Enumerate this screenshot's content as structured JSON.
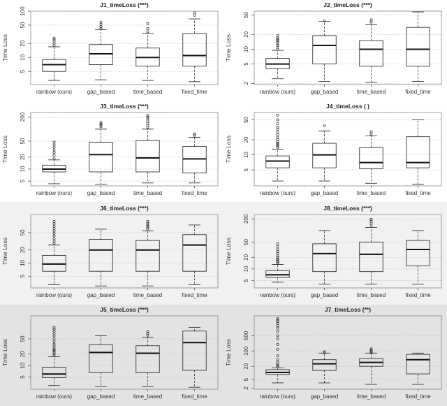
{
  "colors": {
    "band_top": "#ffffff",
    "band_middle": "#f1f1f1",
    "band_bottom": "#e3e3e3",
    "box_stroke": "#333333",
    "outlier": "#333333"
  },
  "chart_data": [
    {
      "type": "box",
      "title": "J1_timeLoss (***)",
      "ylabel": "Time Loss",
      "yscale": "log",
      "ylim": [
        2.6,
        100
      ],
      "yticks": [
        5,
        10,
        20,
        50,
        100
      ],
      "categories": [
        "rainbow (ours)",
        "gap_based",
        "time_based",
        "fixed_time"
      ],
      "boxes": [
        {
          "whisker_low": 3.2,
          "q1": 5.0,
          "median": 7.0,
          "q3": 9.0,
          "whisker_high": 17,
          "outliers": [
            18,
            20,
            22,
            24,
            26
          ]
        },
        {
          "whisker_low": 3.3,
          "q1": 7.0,
          "median": 12.0,
          "q3": 19.0,
          "whisker_high": 40,
          "outliers": [
            42,
            46,
            52,
            58
          ]
        },
        {
          "whisker_low": 3.2,
          "q1": 6.5,
          "median": 10.0,
          "q3": 16.0,
          "whisker_high": 33,
          "outliers": [
            36,
            42,
            54
          ]
        },
        {
          "whisker_low": 3.0,
          "q1": 6.5,
          "median": 11.0,
          "q3": 33.0,
          "whisker_high": 68,
          "outliers": [
            82,
            92
          ]
        }
      ]
    },
    {
      "type": "box",
      "title": "J2_timeLoss (***)",
      "ylabel": "Time Loss",
      "yscale": "log",
      "ylim": [
        1.9,
        60
      ],
      "yticks": [
        2,
        5,
        10,
        20,
        50
      ],
      "categories": [
        "rainbow (ours)",
        "gap_based",
        "time_based",
        "fixed_time"
      ],
      "boxes": [
        {
          "whisker_low": 2.5,
          "q1": 4.0,
          "median": 5.0,
          "q3": 6.5,
          "whisker_high": 9.5,
          "outliers": [
            10,
            11,
            12,
            13,
            14,
            15,
            16,
            17,
            19
          ]
        },
        {
          "whisker_low": 2.2,
          "q1": 5.0,
          "median": 12.0,
          "q3": 19.0,
          "whisker_high": 37,
          "outliers": [
            38
          ]
        },
        {
          "whisker_low": 2.1,
          "q1": 4.5,
          "median": 10.0,
          "q3": 15.0,
          "whisker_high": 32,
          "outliers": [
            36,
            40
          ]
        },
        {
          "whisker_low": 2.2,
          "q1": 4.5,
          "median": 10.0,
          "q3": 28.0,
          "whisker_high": 58,
          "outliers": []
        }
      ]
    },
    {
      "type": "box",
      "title": "J3_timeLoss (***)",
      "ylabel": "Time Loss",
      "yscale": "log",
      "ylim": [
        3.8,
        260
      ],
      "yticks": [
        5,
        10,
        20,
        50,
        200
      ],
      "categories": [
        "rainbow (ours)",
        "gap_based",
        "time_based",
        "fixed_time"
      ],
      "boxes": [
        {
          "whisker_low": 4.3,
          "q1": 8.5,
          "median": 10.0,
          "q3": 12.5,
          "whisker_high": 17,
          "outliers": [
            18,
            22,
            26,
            30,
            35,
            40,
            47
          ]
        },
        {
          "whisker_low": 4.2,
          "q1": 8.5,
          "median": 23.0,
          "q3": 47.0,
          "whisker_high": 100,
          "outliers": [
            115,
            125,
            135,
            145
          ]
        },
        {
          "whisker_low": 4.5,
          "q1": 8.5,
          "median": 19.0,
          "q3": 52.0,
          "whisker_high": 100,
          "outliers": [
            110,
            125,
            140,
            160,
            180,
            200,
            220
          ]
        },
        {
          "whisker_low": 4.5,
          "q1": 8.0,
          "median": 18.0,
          "q3": 37.0,
          "whisker_high": 62,
          "outliers": [
            70,
            76
          ]
        }
      ]
    },
    {
      "type": "box",
      "title": "J4_timeLoss ( )",
      "ylabel": "Time Loss",
      "yscale": "log",
      "ylim": [
        2.4,
        70
      ],
      "yticks": [
        5,
        10,
        20,
        50
      ],
      "categories": [
        "rainbow (ours)",
        "gap_based",
        "time_based",
        "fixed_time"
      ],
      "boxes": [
        {
          "whisker_low": 3.0,
          "q1": 5.5,
          "median": 7.5,
          "q3": 9.5,
          "whisker_high": 13,
          "outliers": [
            14,
            15,
            16,
            17,
            18,
            20,
            22,
            25,
            28,
            32,
            36,
            42,
            50,
            62
          ]
        },
        {
          "whisker_low": 3.0,
          "q1": 5.5,
          "median": 10.0,
          "q3": 17.0,
          "whisker_high": 30,
          "outliers": [
            38
          ]
        },
        {
          "whisker_low": 2.7,
          "q1": 5.3,
          "median": 7.0,
          "q3": 14.0,
          "whisker_high": 24,
          "outliers": [
            26,
            29
          ]
        },
        {
          "whisker_low": 2.6,
          "q1": 5.5,
          "median": 7.0,
          "q3": 23.0,
          "whisker_high": 50,
          "outliers": []
        }
      ]
    },
    {
      "type": "box",
      "title": "J6_timeLoss (***)",
      "ylabel": "Time Loss",
      "yscale": "log",
      "ylim": [
        2.7,
        130
      ],
      "yticks": [
        5,
        10,
        20,
        50
      ],
      "categories": [
        "rainbow (ours)",
        "gap_based",
        "time_based",
        "fixed_time"
      ],
      "boxes": [
        {
          "whisker_low": 3.2,
          "q1": 6.5,
          "median": 9.5,
          "q3": 15.0,
          "whisker_high": 26,
          "outliers": [
            28,
            32,
            36,
            42,
            48,
            55,
            62,
            70,
            80,
            90
          ]
        },
        {
          "whisker_low": 3.0,
          "q1": 6.5,
          "median": 20.0,
          "q3": 35.0,
          "whisker_high": 60,
          "outliers": []
        },
        {
          "whisker_low": 3.0,
          "q1": 6.5,
          "median": 20.0,
          "q3": 33.0,
          "whisker_high": 55,
          "outliers": [
            58,
            64,
            70,
            76,
            82,
            90
          ]
        },
        {
          "whisker_low": 3.2,
          "q1": 6.5,
          "median": 26.0,
          "q3": 45.0,
          "whisker_high": 75,
          "outliers": []
        }
      ]
    },
    {
      "type": "box",
      "title": "J8_timeLoss (***)",
      "ylabel": "Time Loss",
      "yscale": "log",
      "ylim": [
        3.2,
        260
      ],
      "yticks": [
        5,
        10,
        20,
        50,
        200
      ],
      "categories": [
        "rainbow (ours)",
        "gap_based",
        "time_based",
        "fixed_time"
      ],
      "boxes": [
        {
          "whisker_low": 4.5,
          "q1": 6.0,
          "median": 7.0,
          "q3": 9.0,
          "whisker_high": 13,
          "outliers": [
            14,
            15,
            16,
            17,
            18,
            20,
            22,
            25,
            28,
            32,
            38,
            45
          ]
        },
        {
          "whisker_low": 4.0,
          "q1": 8.5,
          "median": 25.0,
          "q3": 45.0,
          "whisker_high": 100,
          "outliers": []
        },
        {
          "whisker_low": 4.0,
          "q1": 8.5,
          "median": 24.0,
          "q3": 50.0,
          "whisker_high": 120,
          "outliers": [
            135,
            155,
            175,
            195
          ]
        },
        {
          "whisker_low": 4.0,
          "q1": 12.0,
          "median": 32.0,
          "q3": 55.0,
          "whisker_high": 100,
          "outliers": []
        }
      ]
    },
    {
      "type": "box",
      "title": "J5_timeLoss (***)",
      "ylabel": "Time Loss",
      "yscale": "log",
      "ylim": [
        2.4,
        200
      ],
      "yticks": [
        5,
        10,
        20,
        50
      ],
      "categories": [
        "rainbow (ours)",
        "gap_based",
        "time_based",
        "fixed_time"
      ],
      "boxes": [
        {
          "whisker_low": 3.0,
          "q1": 4.8,
          "median": 6.0,
          "q3": 9.0,
          "whisker_high": 17,
          "outliers": [
            18,
            20,
            22,
            24,
            26,
            28,
            32,
            36,
            42,
            50,
            60,
            70,
            80,
            90,
            100
          ]
        },
        {
          "whisker_low": 2.8,
          "q1": 6.5,
          "median": 22.0,
          "q3": 35.0,
          "whisker_high": 60,
          "outliers": []
        },
        {
          "whisker_low": 2.8,
          "q1": 6.5,
          "median": 21.0,
          "q3": 33.0,
          "whisker_high": 55,
          "outliers": [
            62,
            70,
            78
          ]
        },
        {
          "whisker_low": 2.7,
          "q1": 7.5,
          "median": 40.0,
          "q3": 80.0,
          "whisker_high": 100,
          "outliers": []
        }
      ]
    },
    {
      "type": "box",
      "title": "J7_timeLoss (**)",
      "ylabel": "Time Loss",
      "yscale": "log",
      "ylim": [
        1.8,
        4000
      ],
      "yticks": [
        2,
        5,
        20,
        100,
        500
      ],
      "categories": [
        "rainbow (ours)",
        "gap_based",
        "time_based",
        "fixed_time"
      ],
      "boxes": [
        {
          "whisker_low": 3.5,
          "q1": 8.5,
          "median": 10.5,
          "q3": 14.0,
          "whisker_high": 17,
          "outliers": [
            19,
            22,
            26,
            32,
            40,
            60,
            120,
            200,
            350,
            500,
            800,
            1100,
            1400,
            1800,
            2200,
            2600,
            3000
          ]
        },
        {
          "whisker_low": 3.5,
          "q1": 13.0,
          "median": 26.0,
          "q3": 40.0,
          "whisker_high": 80,
          "outliers": [
            85,
            92
          ]
        },
        {
          "whisker_low": 3.0,
          "q1": 20.0,
          "median": 30.0,
          "q3": 45.0,
          "whisker_high": 80,
          "outliers": [
            85,
            95,
            110,
            125
          ]
        },
        {
          "whisker_low": 3.0,
          "q1": 9.0,
          "median": 40.0,
          "q3": 70.0,
          "whisker_high": 80,
          "outliers": []
        }
      ]
    }
  ]
}
